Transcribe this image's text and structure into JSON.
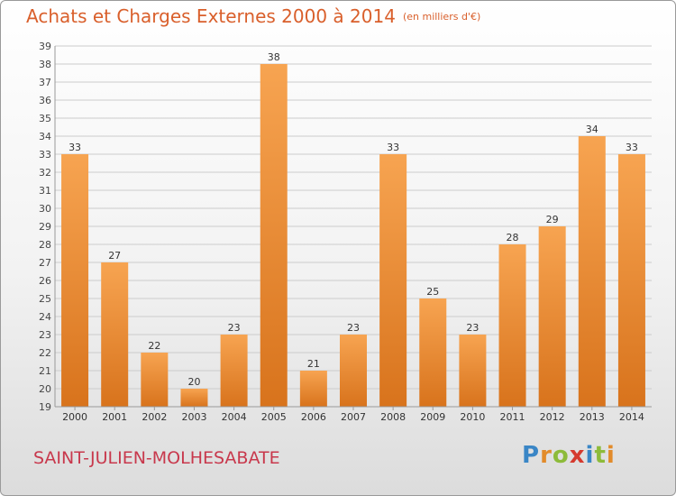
{
  "title": "Achats et Charges Externes 2000 à 2014",
  "unit": "(en milliers d'€)",
  "commune": "SAINT-JULIEN-MOLHESABATE",
  "logo": {
    "letters": [
      "P",
      "r",
      "o",
      "x",
      "i",
      "t",
      "i"
    ],
    "colors": [
      "#3a86c6",
      "#e28b2a",
      "#8dbb3a",
      "#d53a2e",
      "#3a86c6",
      "#8dbb3a",
      "#e28b2a"
    ]
  },
  "chart_data": {
    "type": "bar",
    "categories": [
      "2000",
      "2001",
      "2002",
      "2003",
      "2004",
      "2005",
      "2006",
      "2007",
      "2008",
      "2009",
      "2010",
      "2011",
      "2012",
      "2013",
      "2014"
    ],
    "values": [
      33,
      27,
      22,
      20,
      23,
      38,
      21,
      23,
      33,
      25,
      23,
      28,
      29,
      34,
      33
    ],
    "ylim": [
      19,
      39
    ],
    "yticks": [
      19,
      20,
      21,
      22,
      23,
      24,
      25,
      26,
      27,
      28,
      29,
      30,
      31,
      32,
      33,
      34,
      35,
      36,
      37,
      38,
      39
    ],
    "grid": true,
    "colors": {
      "bar_top": "#f7a451",
      "bar_bottom": "#d8731c",
      "grid": "#cccccc"
    }
  }
}
